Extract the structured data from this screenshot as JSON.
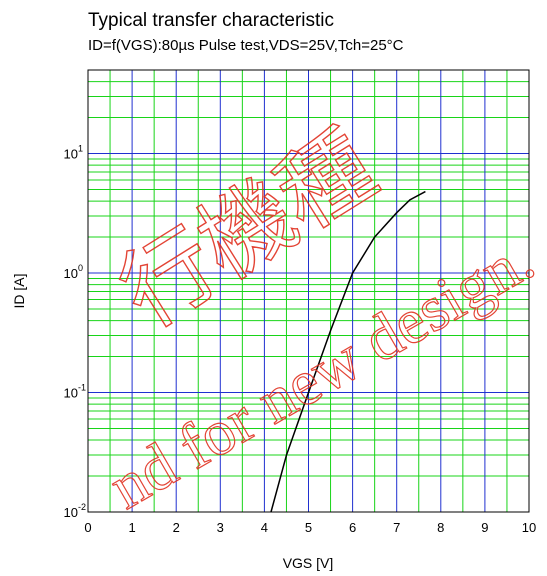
{
  "chart_data": {
    "type": "line",
    "title": "Typical transfer characteristic",
    "subtitle": "ID=f(VGS):80µs Pulse test,VDS=25V,Tch=25°C",
    "xlabel": "VGS [V]",
    "ylabel": "ID [A]",
    "xlim": [
      0,
      10
    ],
    "ylim": [
      0.01,
      50
    ],
    "yscale": "log",
    "x_ticks": [
      "0",
      "1",
      "2",
      "3",
      "4",
      "5",
      "6",
      "7",
      "8",
      "9",
      "10"
    ],
    "y_ticks": [
      {
        "value": 0.01,
        "base": "10",
        "exp": "-2"
      },
      {
        "value": 0.1,
        "base": "10",
        "exp": "-1"
      },
      {
        "value": 1,
        "base": "10",
        "exp": "0"
      },
      {
        "value": 10,
        "base": "10",
        "exp": "1"
      }
    ],
    "grid": true,
    "series": [
      {
        "x": [
          4.15,
          4.5,
          5.0,
          5.5,
          6.0,
          6.5,
          7.0,
          7.3,
          7.65
        ],
        "y": [
          0.01,
          0.03,
          0.1,
          0.33,
          1.0,
          2.0,
          3.2,
          4.1,
          4.8
        ],
        "color": "#000000"
      }
    ],
    "colors": {
      "major_grid": "#2030d0",
      "minor_grid": "#18d418",
      "watermark": "#e03020"
    }
  },
  "watermark": {
    "main": "行機種",
    "overlay": "nd for new design."
  }
}
